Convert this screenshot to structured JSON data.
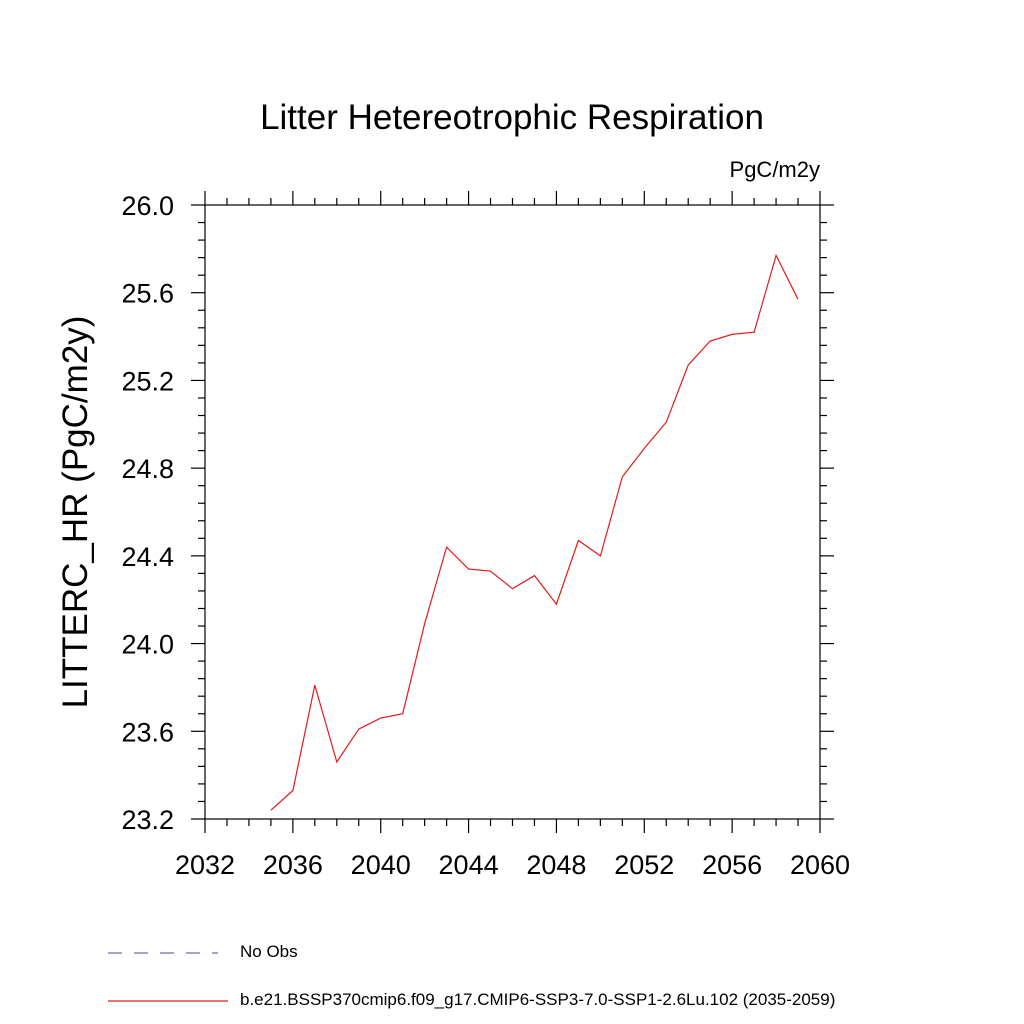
{
  "chart_data": {
    "type": "line",
    "title": "Litter Hetereotrophic Respiration",
    "units": "PgC/m2y",
    "ylabel": "LITTERC_HR  (PgC/m2y)",
    "xlabel": "",
    "xlim": [
      2032,
      2060
    ],
    "ylim": [
      23.2,
      26.0
    ],
    "x_ticks": [
      2032,
      2036,
      2040,
      2044,
      2048,
      2052,
      2056,
      2060
    ],
    "x_tick_labels": [
      "2032",
      "2036",
      "2040",
      "2044",
      "2048",
      "2052",
      "2056",
      "2060"
    ],
    "y_ticks": [
      23.2,
      23.6,
      24.0,
      24.4,
      24.8,
      25.2,
      25.6,
      26.0
    ],
    "y_tick_labels": [
      "23.2",
      "23.6",
      "24.0",
      "24.4",
      "24.8",
      "25.2",
      "25.6",
      "26.0"
    ],
    "grid": false,
    "legend_position": "bottom",
    "legend": [
      {
        "label": "No Obs",
        "style": "dashed",
        "color": "#7b68b8"
      },
      {
        "label": "b.e21.BSSP370cmip6.f09_g17.CMIP6-SSP3-7.0-SSP1-2.6Lu.102 (2035-2059)",
        "style": "solid",
        "color": "#e41a1c"
      }
    ],
    "series": [
      {
        "name": "b.e21.BSSP370cmip6.f09_g17.CMIP6-SSP3-7.0-SSP1-2.6Lu.102 (2035-2059)",
        "color": "#e41a1c",
        "x": [
          2035,
          2036,
          2037,
          2038,
          2039,
          2040,
          2041,
          2042,
          2043,
          2044,
          2045,
          2046,
          2047,
          2048,
          2049,
          2050,
          2051,
          2052,
          2053,
          2054,
          2055,
          2056,
          2057,
          2058,
          2059
        ],
        "y": [
          23.24,
          23.33,
          23.81,
          23.46,
          23.61,
          23.66,
          23.68,
          24.09,
          24.44,
          24.34,
          24.33,
          24.25,
          24.31,
          24.18,
          24.47,
          24.4,
          24.76,
          24.89,
          25.01,
          25.27,
          25.38,
          25.41,
          25.42,
          25.77,
          25.57
        ]
      }
    ]
  }
}
